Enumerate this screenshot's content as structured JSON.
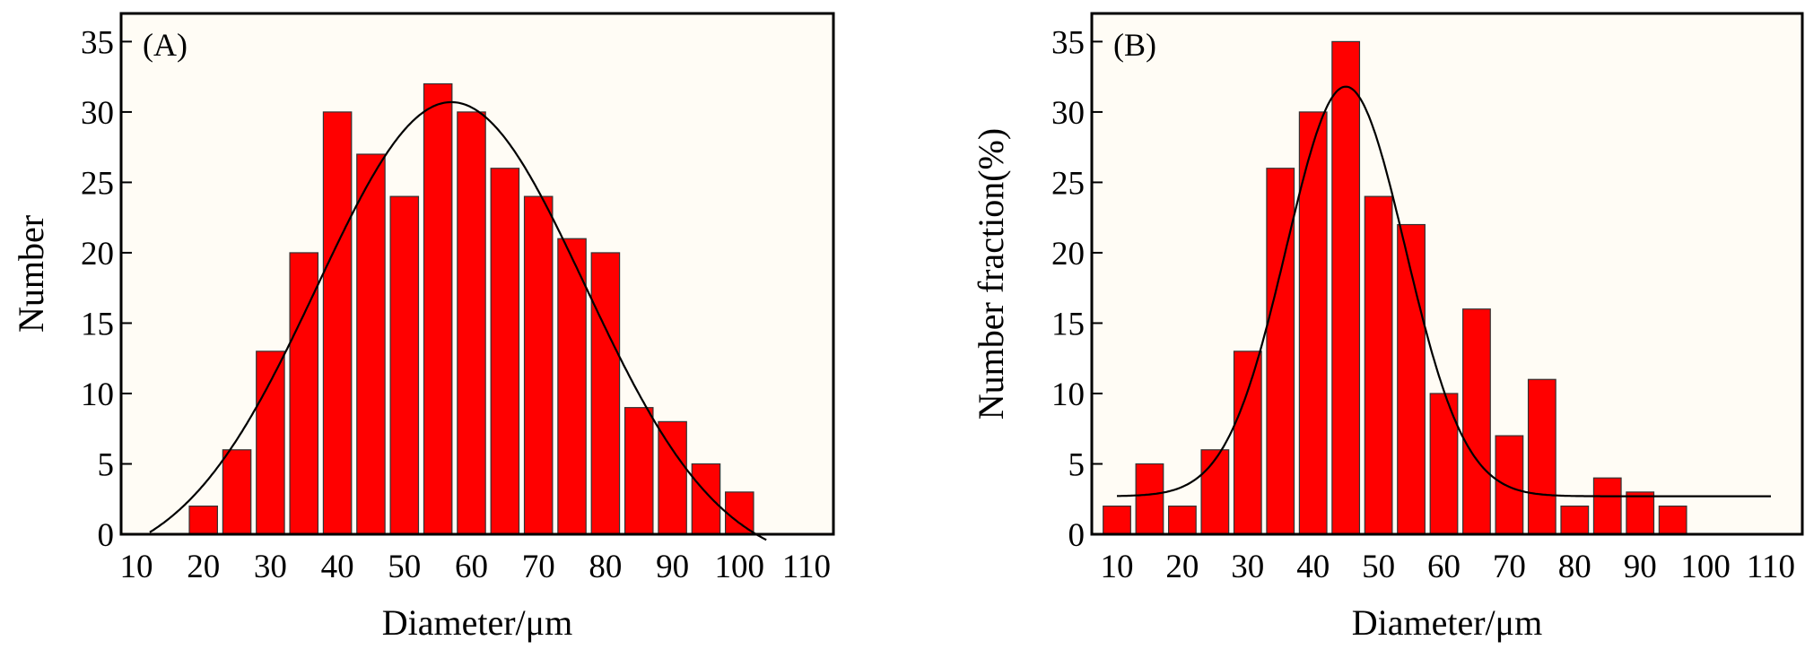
{
  "chart_data": [
    {
      "type": "bar",
      "panel_label": "(A)",
      "xlabel": "Diameter/μm",
      "ylabel": "Number",
      "xlim": [
        10,
        110
      ],
      "ylim": [
        0,
        37
      ],
      "xticks": [
        10,
        20,
        30,
        40,
        50,
        60,
        70,
        80,
        90,
        100,
        110
      ],
      "yticks": [
        0,
        5,
        10,
        15,
        20,
        25,
        30,
        35
      ],
      "x": [
        20,
        25,
        30,
        35,
        40,
        45,
        50,
        55,
        60,
        65,
        70,
        75,
        80,
        85,
        90,
        95,
        100
      ],
      "values": [
        2,
        6,
        13,
        20,
        30,
        27,
        24,
        32,
        30,
        26,
        24,
        21,
        20,
        9,
        8,
        5,
        3
      ],
      "fit": {
        "type": "gaussian",
        "y0": -2.5,
        "A": 33.2,
        "xc": 57,
        "sigma": 20,
        "xrange": [
          12,
          104
        ]
      },
      "bar_color": "#ff0000",
      "background": "#fffcf5"
    },
    {
      "type": "bar",
      "panel_label": "(B)",
      "xlabel": "Diameter/μm",
      "ylabel": "Number fraction(%)",
      "xlim": [
        6,
        112
      ],
      "ylim": [
        0,
        37
      ],
      "xticks": [
        10,
        20,
        30,
        40,
        50,
        60,
        70,
        80,
        90,
        100,
        110
      ],
      "yticks": [
        0,
        5,
        10,
        15,
        20,
        25,
        30,
        35
      ],
      "x": [
        10,
        15,
        20,
        25,
        30,
        35,
        40,
        45,
        50,
        55,
        60,
        65,
        70,
        75,
        80,
        85,
        90,
        95
      ],
      "values": [
        2,
        5,
        2,
        6,
        13,
        26,
        30,
        35,
        24,
        22,
        10,
        16,
        7,
        11,
        2,
        4,
        3,
        2
      ],
      "fit": {
        "type": "gaussian",
        "y0": 2.7,
        "A": 29.1,
        "xc": 45,
        "sigma": 9.1,
        "xrange": [
          10,
          110
        ]
      },
      "bar_color": "#ff0000",
      "background": "#fffcf5"
    }
  ]
}
